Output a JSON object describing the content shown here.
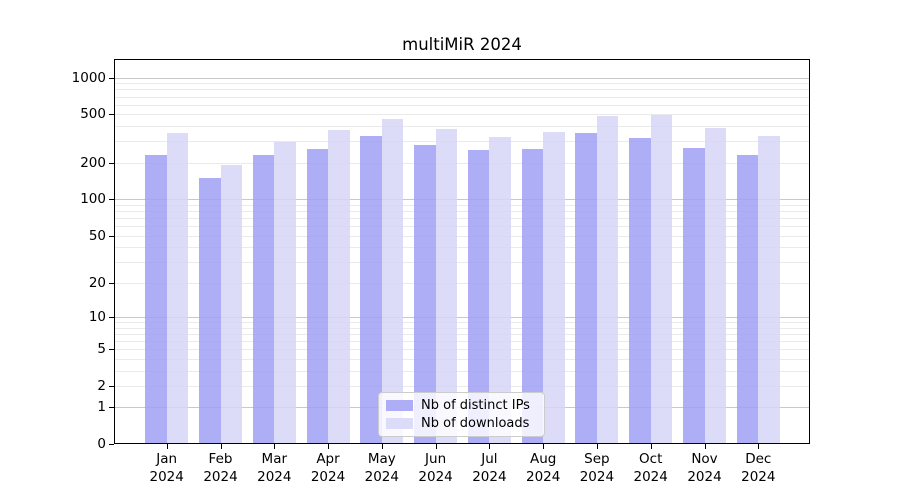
{
  "title": "multiMiR 2024",
  "chart_data": {
    "type": "bar",
    "title": "multiMiR 2024",
    "categories": [
      "Jan 2024",
      "Feb 2024",
      "Mar 2024",
      "Apr 2024",
      "May 2024",
      "Jun 2024",
      "Jul 2024",
      "Aug 2024",
      "Sep 2024",
      "Oct 2024",
      "Nov 2024",
      "Dec 2024"
    ],
    "series": [
      {
        "name": "Nb of distinct IPs",
        "color": "#aeaef6",
        "values": [
          230,
          150,
          230,
          260,
          330,
          279,
          254,
          260,
          352,
          320,
          263,
          231
        ]
      },
      {
        "name": "Nb of downloads",
        "color": "#dcdcf9",
        "values": [
          354,
          190,
          296,
          371,
          455,
          376,
          327,
          356,
          481,
          492,
          383,
          331
        ]
      }
    ],
    "yscale": "log1p",
    "ylim": [
      0,
      1420
    ],
    "y_ticks": [
      0,
      1,
      2,
      5,
      10,
      20,
      50,
      100,
      200,
      500,
      1000
    ],
    "grid": "both",
    "legend_position": "lower center",
    "xlabel": "",
    "ylabel": ""
  },
  "colors": {
    "grid_major": "#c8c8c8",
    "grid_minor": "#eaeaea",
    "spine": "#000000",
    "text": "#000000",
    "legend_border": "#cccccc",
    "legend_bg": "rgba(255,255,255,0.8)"
  }
}
